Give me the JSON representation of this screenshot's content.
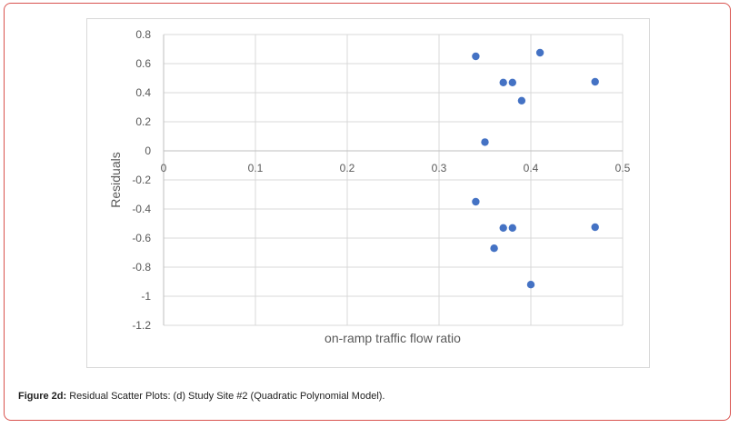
{
  "figure": {
    "caption_label": "Figure 2d:",
    "caption_text": " Residual Scatter Plots: (d) Study Site #2 (Quadratic Polynomial Model)."
  },
  "chart_data": {
    "type": "scatter",
    "title": "",
    "xlabel": "on-ramp traffic flow ratio",
    "ylabel": "Residuals",
    "xlim": [
      0,
      0.5
    ],
    "ylim": [
      -1.2,
      0.8
    ],
    "xticks": [
      0,
      0.1,
      0.2,
      0.3,
      0.4,
      0.5
    ],
    "xtick_labels": [
      "0",
      "0.1",
      "0.2",
      "0.3",
      "0.4",
      "0.5"
    ],
    "yticks": [
      0.8,
      0.6,
      0.4,
      0.2,
      0,
      -0.2,
      -0.4,
      -0.6,
      -0.8,
      -1,
      -1.2
    ],
    "ytick_labels": [
      "0.8",
      "0.6",
      "0.4",
      "0.2",
      "0",
      "-0.2",
      "-0.4",
      "-0.6",
      "-0.8",
      "-1",
      "-1.2"
    ],
    "grid": true,
    "legend": "none",
    "marker_color": "#4472c4",
    "points": [
      {
        "x": 0.34,
        "y": 0.65
      },
      {
        "x": 0.41,
        "y": 0.675
      },
      {
        "x": 0.37,
        "y": 0.47
      },
      {
        "x": 0.38,
        "y": 0.47
      },
      {
        "x": 0.47,
        "y": 0.475
      },
      {
        "x": 0.39,
        "y": 0.345
      },
      {
        "x": 0.35,
        "y": 0.06
      },
      {
        "x": 0.34,
        "y": -0.35
      },
      {
        "x": 0.37,
        "y": -0.53
      },
      {
        "x": 0.38,
        "y": -0.53
      },
      {
        "x": 0.47,
        "y": -0.525
      },
      {
        "x": 0.36,
        "y": -0.67
      },
      {
        "x": 0.4,
        "y": -0.92
      }
    ]
  }
}
